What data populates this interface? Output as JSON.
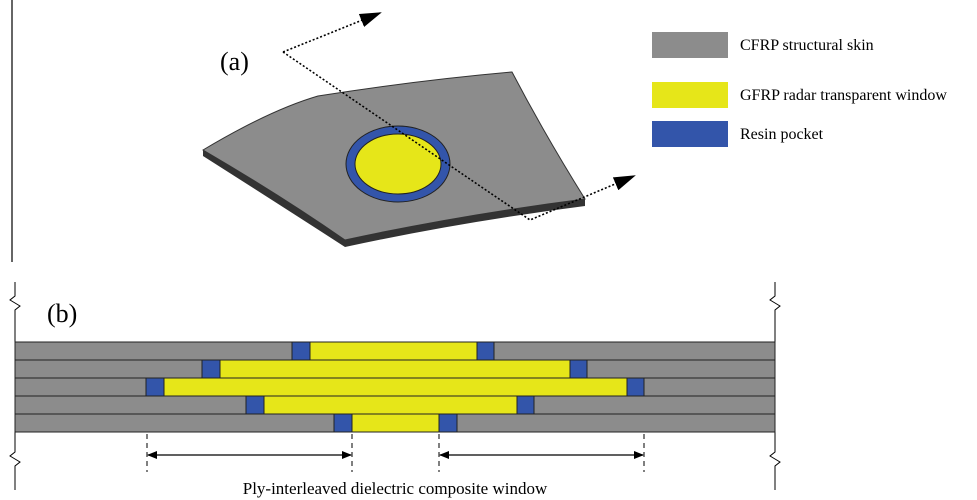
{
  "panel_a": {
    "label": "(a)"
  },
  "panel_b": {
    "label": "(b)",
    "caption": "Ply-interleaved dielectric composite window"
  },
  "legend": {
    "items": [
      {
        "label": "CFRP structural skin",
        "color": "#8c8c8c"
      },
      {
        "label": "GFRP radar transparent window",
        "color": "#e6e619"
      },
      {
        "label": "Resin pocket",
        "color": "#3355aa"
      }
    ]
  }
}
